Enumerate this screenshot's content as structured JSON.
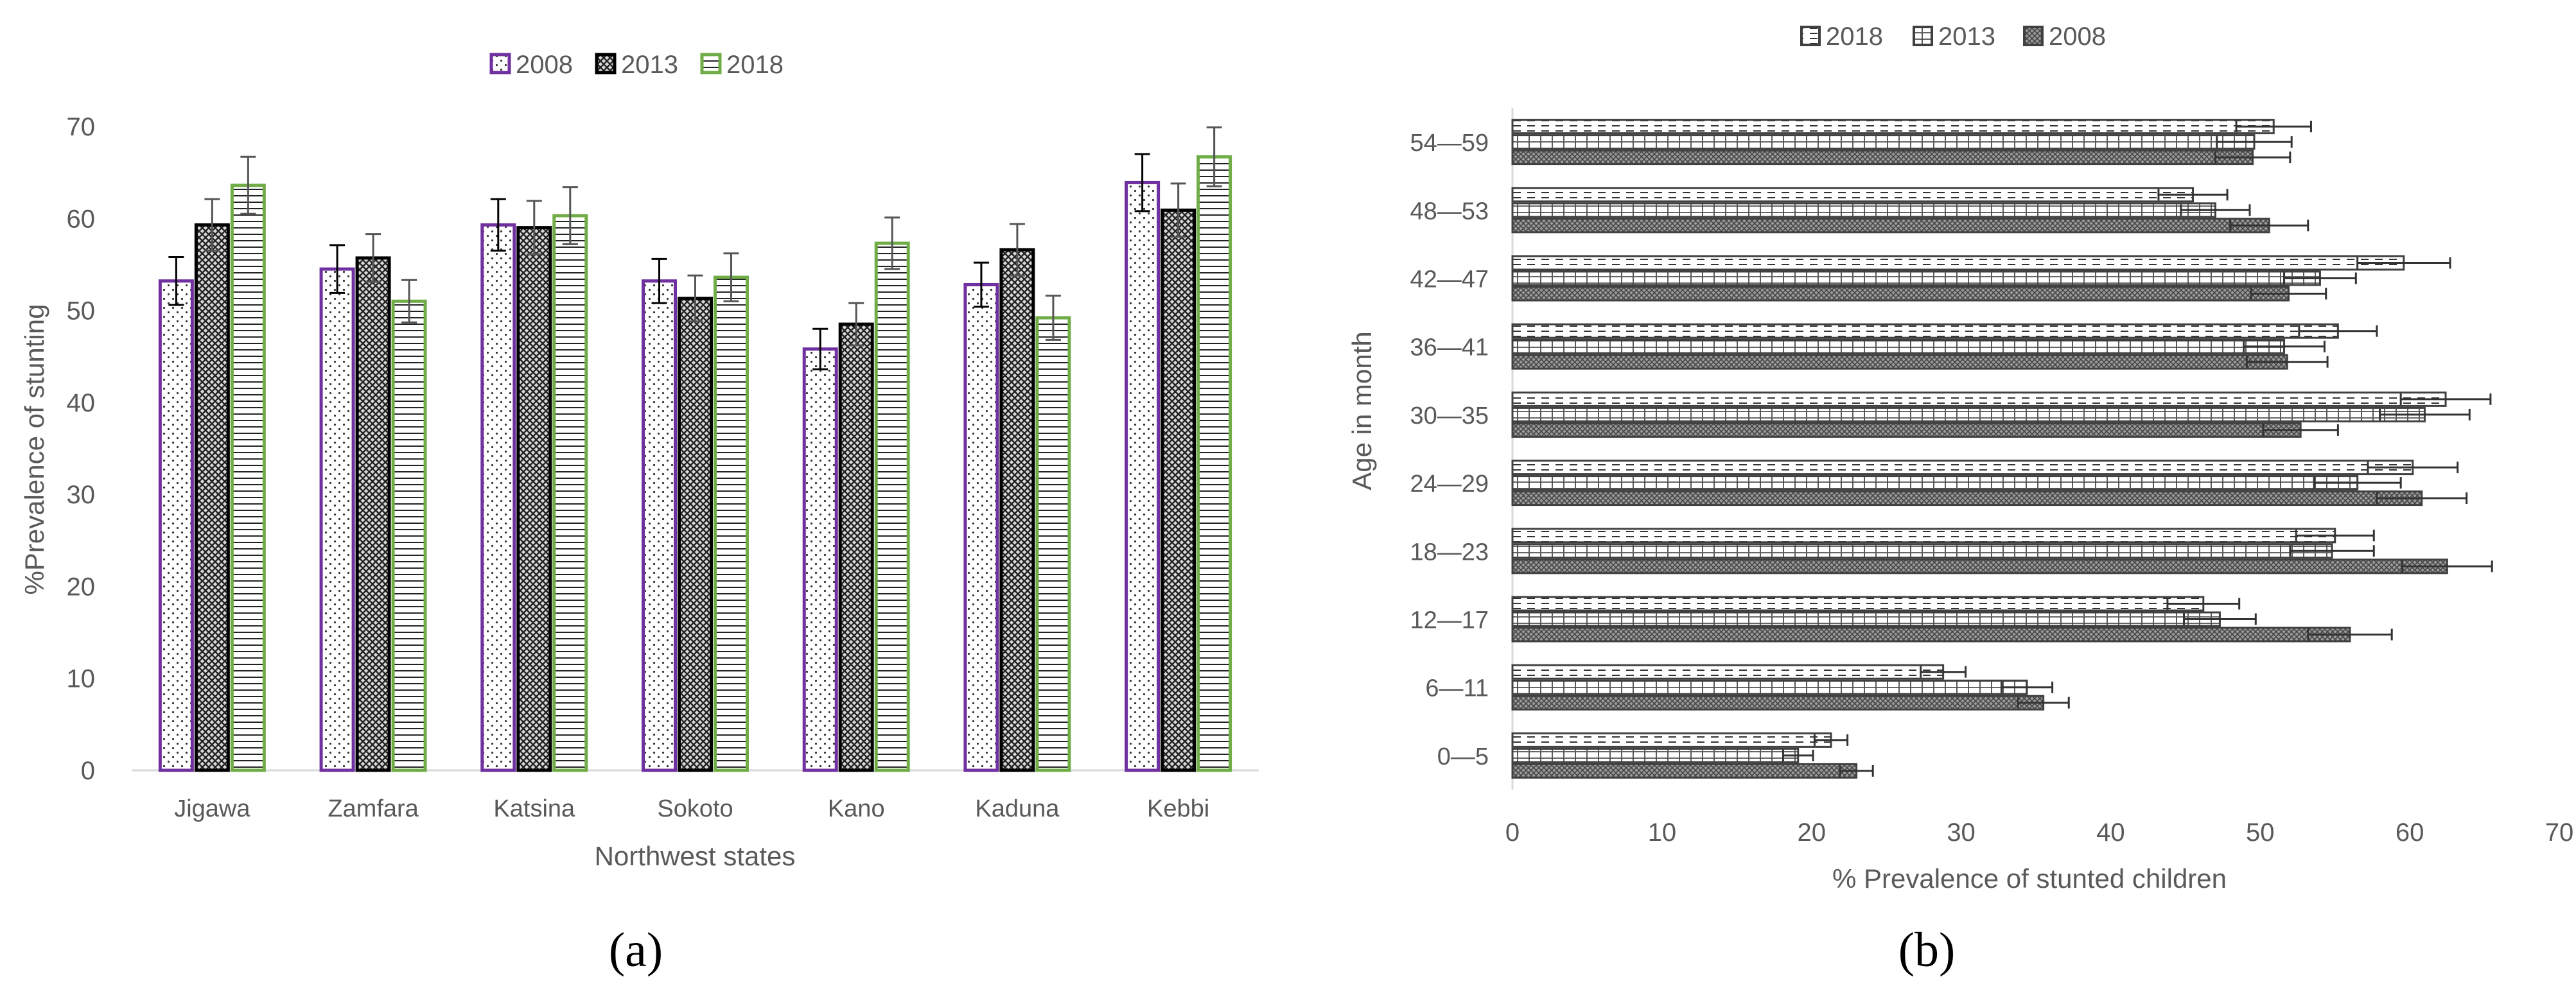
{
  "chart_data": [
    {
      "type": "bar",
      "panel_label": "(a)",
      "xlabel": "Northwest states",
      "ylabel": "%Prevalence of stunting",
      "ylim": [
        0,
        70
      ],
      "yticks": [
        0,
        10,
        20,
        30,
        40,
        50,
        60,
        70
      ],
      "legend_position": "top",
      "grid": false,
      "categories": [
        "Jigawa",
        "Zamfara",
        "Katsina",
        "Sokoto",
        "Kano",
        "Kaduna",
        "Kebbi"
      ],
      "series": [
        {
          "name": "2008",
          "pattern": "dots",
          "color": "#7030a0",
          "values": [
            53.2,
            54.5,
            59.3,
            53.2,
            45.8,
            52.8,
            63.9
          ],
          "errors": [
            2.6,
            2.6,
            2.8,
            2.4,
            2.2,
            2.4,
            3.1
          ]
        },
        {
          "name": "2013",
          "pattern": "crosshatch",
          "color": "#000000",
          "values": [
            59.3,
            55.7,
            59.0,
            51.3,
            48.5,
            56.6,
            60.9
          ],
          "errors": [
            2.8,
            2.6,
            2.9,
            2.5,
            2.3,
            2.8,
            2.9
          ]
        },
        {
          "name": "2018",
          "pattern": "hlines",
          "color": "#70ad47",
          "values": [
            63.6,
            51.0,
            60.3,
            53.6,
            57.3,
            49.2,
            66.7
          ],
          "errors": [
            3.1,
            2.3,
            3.1,
            2.6,
            2.8,
            2.4,
            3.2
          ]
        }
      ]
    },
    {
      "type": "bar",
      "orientation": "horizontal",
      "panel_label": "(b)",
      "xlabel": "% Prevalence of stunted children",
      "ylabel": "Age in month",
      "xlim": [
        0,
        70
      ],
      "xticks": [
        0,
        10,
        20,
        30,
        40,
        50,
        60,
        70
      ],
      "legend_position": "top",
      "grid": false,
      "categories": [
        "0—5",
        "6—11",
        "12—17",
        "18—23",
        "24—29",
        "30—35",
        "36—41",
        "42—47",
        "48—53",
        "54—59"
      ],
      "series": [
        {
          "name": "2018",
          "pattern": "dashes",
          "color": "#404040",
          "values": [
            21.3,
            28.8,
            46.2,
            55.0,
            60.2,
            62.4,
            55.2,
            59.6,
            45.5,
            50.9
          ],
          "errors": [
            1.1,
            1.5,
            2.4,
            2.6,
            3.0,
            3.0,
            2.6,
            3.1,
            2.3,
            2.5
          ]
        },
        {
          "name": "2013",
          "pattern": "bricks",
          "color": "#404040",
          "values": [
            19.1,
            34.4,
            47.3,
            54.8,
            56.5,
            61.0,
            51.6,
            54.0,
            47.0,
            49.6
          ],
          "errors": [
            1.0,
            1.7,
            2.4,
            2.8,
            2.9,
            3.0,
            2.7,
            2.4,
            2.3,
            2.5
          ]
        },
        {
          "name": "2008",
          "pattern": "dense",
          "color": "#404040",
          "values": [
            23.0,
            35.5,
            56.0,
            62.5,
            60.8,
            52.7,
            51.8,
            51.9,
            50.6,
            49.5
          ],
          "errors": [
            1.1,
            1.7,
            2.8,
            3.0,
            3.0,
            2.5,
            2.7,
            2.5,
            2.6,
            2.5
          ]
        }
      ]
    }
  ]
}
